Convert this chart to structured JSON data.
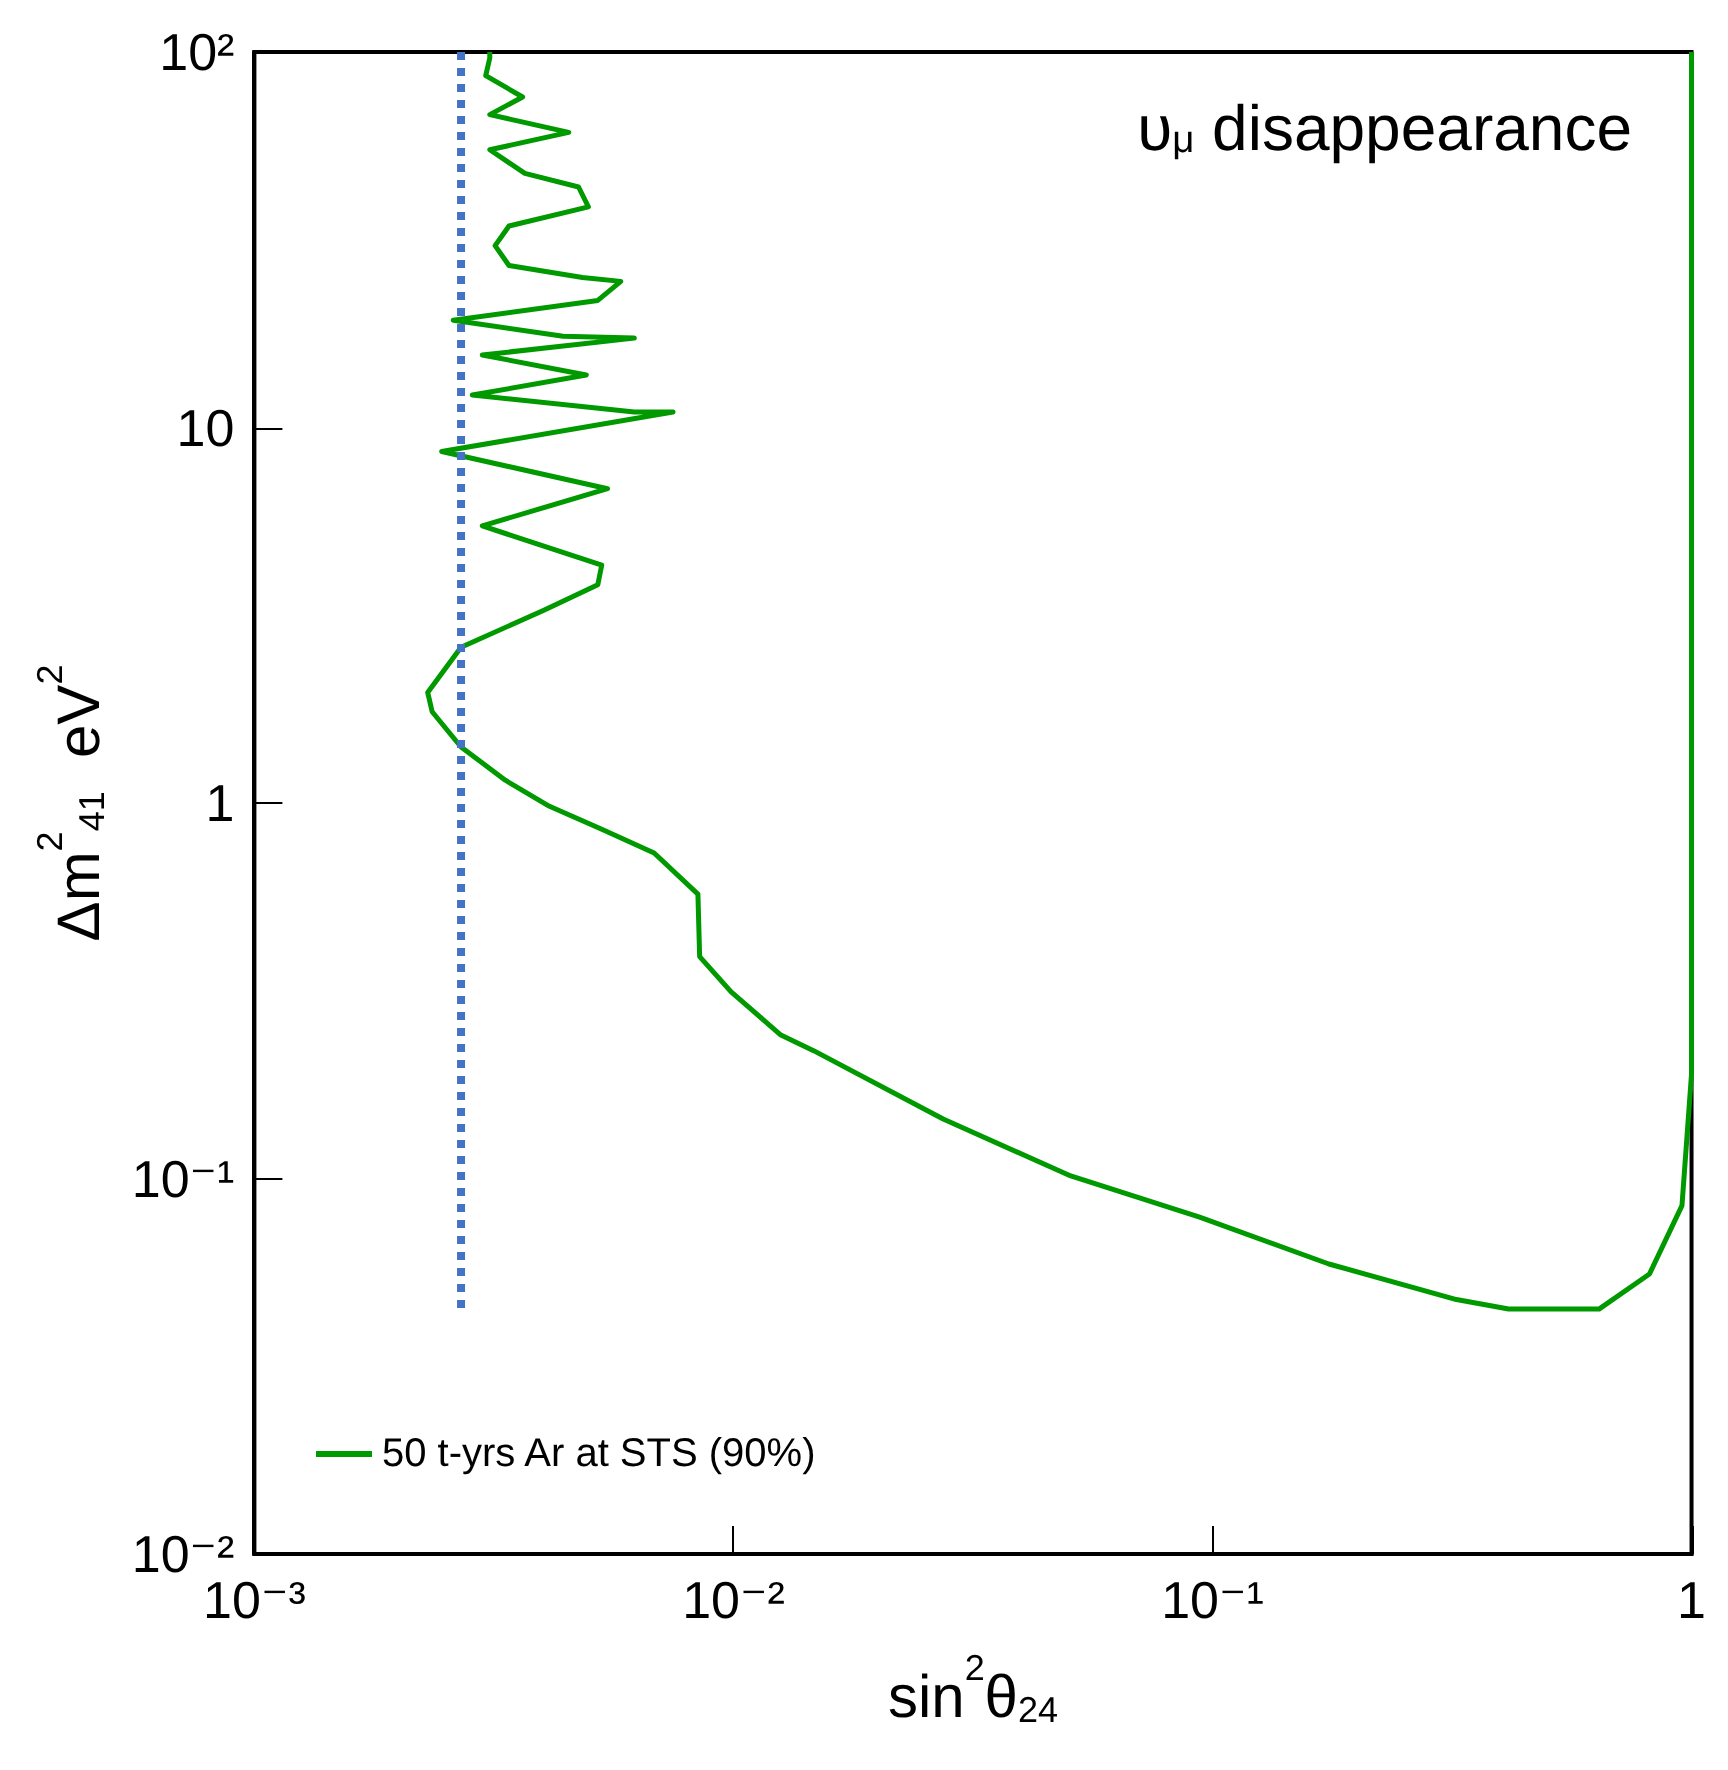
{
  "chart_data": {
    "type": "line",
    "xlabel": "sin$^{2}$θ$_{24}$",
    "ylabel": "Δm$^{2}$$_{41}$  eV$^{2}$",
    "annotations": [
      "υ$_{μ}$ disappearance"
    ],
    "log": "xy",
    "xlim": [
      0.001,
      1
    ],
    "ylim": [
      0.01,
      100
    ],
    "xticks": [
      {
        "value": 0.001,
        "label": "10⁻³"
      },
      {
        "value": 0.01,
        "label": "10⁻²"
      },
      {
        "value": 0.1,
        "label": "10⁻¹"
      },
      1
    ],
    "yticks": [
      {
        "value": 0.01,
        "label": "10⁻²"
      },
      {
        "value": 0.1,
        "label": "10⁻¹"
      },
      1,
      10,
      {
        "value": 100,
        "label": "10²"
      }
    ],
    "grid": false,
    "legend": "bottom left",
    "marker": "none",
    "series": [
      {
        "name": "50 t-yrs Ar at STS (90%)",
        "color": "#009900",
        "line_style": "solid",
        "x": [
          0.0031,
          0.0031,
          0.00304,
          0.00363,
          0.0031,
          0.00453,
          0.0031,
          0.00367,
          0.00475,
          0.00498,
          0.0034,
          0.00318,
          0.0034,
          0.00484,
          0.00582,
          0.00521,
          0.0026,
          0.00441,
          0.00621,
          0.00299,
          0.00493,
          0.00285,
          0.00621,
          0.00748,
          0.00246,
          0.00546,
          0.00299,
          0.00531,
          0.00521,
          0.00402,
          0.0027,
          0.0023,
          0.00235,
          0.0027,
          0.00334,
          0.00413,
          0.00531,
          0.00683,
          0.00843,
          0.0085,
          0.00989,
          0.01256,
          0.0147,
          0.0274,
          0.0506,
          0.094,
          0.175,
          0.323,
          0.415,
          0.641,
          0.817,
          0.955,
          1,
          1
        ],
        "values": [
          100,
          96.4,
          86.5,
          75.9,
          68.1,
          61.1,
          54.9,
          47.5,
          43.7,
          38.7,
          34.4,
          30.5,
          27.0,
          25.1,
          24.5,
          21.8,
          19.3,
          17.5,
          17.3,
          15.6,
          13.8,
          12.2,
          11.0,
          11.0,
          8.63,
          6.87,
          5.47,
          4.3,
          3.81,
          3.26,
          2.6,
          1.97,
          1.75,
          1.41,
          1.15,
          0.98,
          0.851,
          0.736,
          0.572,
          0.39,
          0.314,
          0.241,
          0.219,
          0.144,
          0.1016,
          0.0789,
          0.0592,
          0.0476,
          0.0449,
          0.0449,
          0.0557,
          0.0847,
          0.19,
          100
        ]
      },
      {
        "color": "#4472c4",
        "line_style": "dotted",
        "x": [
          0.0027,
          0.0027
        ],
        "values": [
          100,
          0.045
        ]
      }
    ]
  }
}
